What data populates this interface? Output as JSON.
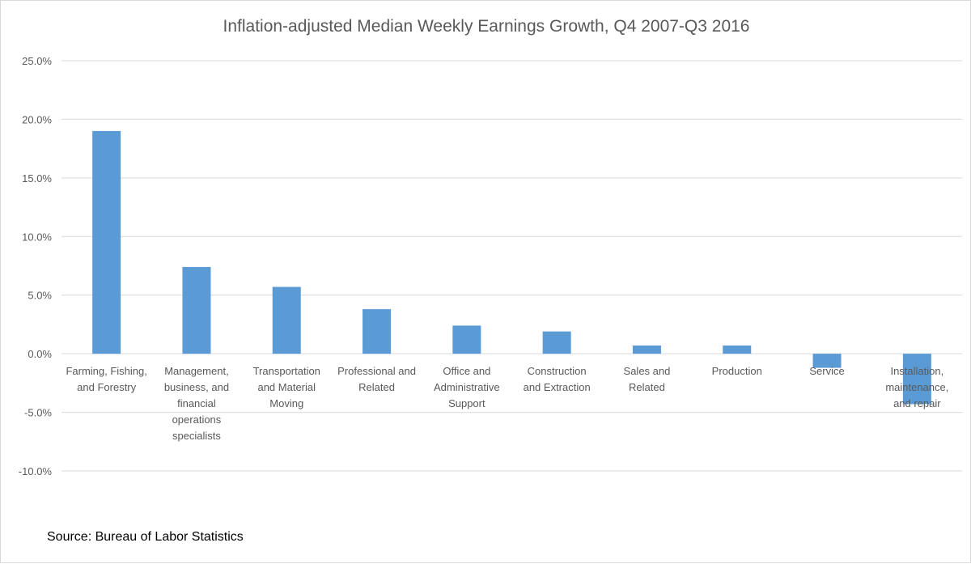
{
  "chart_data": {
    "type": "bar",
    "title": "Inflation-adjusted Median Weekly Earnings Growth, Q4 2007-Q3 2016",
    "xlabel": "",
    "ylabel": "",
    "ylim": [
      -10,
      25
    ],
    "y_ticks": [
      25,
      20,
      15,
      10,
      5,
      0,
      -5,
      -10
    ],
    "y_tick_labels": [
      "25.0%",
      "20.0%",
      "15.0%",
      "10.0%",
      "5.0%",
      "0.0%",
      "-5.0%",
      "-10.0%"
    ],
    "grid": true,
    "categories": [
      [
        "Farming, Fishing,",
        "and Forestry"
      ],
      [
        "Management,",
        "business, and",
        "financial",
        "operations",
        "specialists"
      ],
      [
        "Transportation",
        "and Material",
        "Moving"
      ],
      [
        "Professional and",
        "Related"
      ],
      [
        "Office and",
        "Administrative",
        "Support"
      ],
      [
        "Construction",
        "and Extraction"
      ],
      [
        "Sales and",
        "Related"
      ],
      [
        "Production"
      ],
      [
        "Service"
      ],
      [
        "Installation,",
        "maintenance,",
        "and repair"
      ]
    ],
    "values": [
      19.0,
      7.4,
      5.7,
      3.8,
      2.4,
      1.9,
      0.7,
      0.7,
      -1.2,
      -4.3
    ],
    "bar_color": "#5b9bd5",
    "grid_color": "#d9d9d9",
    "text_color": "#595959"
  },
  "source": "Source: Bureau of Labor Statistics"
}
